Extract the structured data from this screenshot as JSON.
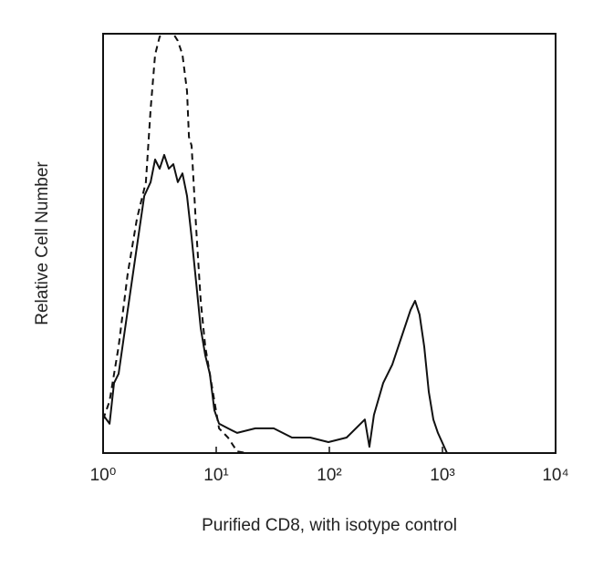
{
  "chart_data": {
    "type": "line",
    "x_label": "Purified CD8, with isotype control",
    "y_label": "Relative Cell Number",
    "xscale": "log",
    "xlim": [
      1,
      10000
    ],
    "xticks": [
      {
        "value": 1,
        "label": "10⁰"
      },
      {
        "value": 10,
        "label": "10¹"
      },
      {
        "value": 100,
        "label": "10²"
      },
      {
        "value": 1000,
        "label": "10³"
      },
      {
        "value": 10000,
        "label": "10⁴"
      }
    ],
    "ylim": [
      0,
      100
    ],
    "series": [
      {
        "color": "#111111",
        "style": "solid",
        "x": [
          1,
          1.14,
          1.25,
          1.37,
          1.65,
          1.99,
          2.31,
          2.63,
          2.88,
          3.16,
          3.47,
          3.81,
          4.18,
          4.58,
          5.03,
          5.52,
          6.06,
          6.65,
          7.29,
          8.0,
          8.78,
          9.64,
          10.6,
          12.7,
          15.3,
          22.2,
          32.2,
          46.7,
          67.7,
          98.2,
          142,
          206,
          226,
          248,
          299,
          360,
          434,
          522,
          573,
          628,
          690,
          757,
          830,
          912,
          1097
        ],
        "values": [
          9.1,
          7.0,
          16.7,
          18.9,
          34.1,
          49.3,
          61.3,
          64.6,
          70.0,
          67.8,
          71.1,
          67.8,
          68.9,
          64.6,
          66.7,
          61.3,
          51.5,
          40.7,
          29.8,
          23.3,
          18.9,
          10.2,
          7.0,
          5.9,
          4.8,
          5.9,
          5.9,
          3.7,
          3.7,
          2.6,
          3.7,
          8.0,
          1.5,
          9.1,
          16.7,
          21.1,
          27.6,
          34.1,
          36.3,
          33.0,
          25.4,
          14.6,
          8.0,
          4.8,
          0
        ]
      },
      {
        "color": "#111111",
        "style": "dashed",
        "x": [
          1,
          1.14,
          1.37,
          1.65,
          1.99,
          2.39,
          2.63,
          2.88,
          3.16,
          3.47,
          4.18,
          4.58,
          5.03,
          5.52,
          5.74,
          6.06,
          6.65,
          7.29,
          8.0,
          8.78,
          9.64,
          10.6,
          12.7,
          15.3,
          18.4
        ],
        "values": [
          8.0,
          12.4,
          25.4,
          42.8,
          55.9,
          64.6,
          82.0,
          95.0,
          99.3,
          100,
          100,
          98.3,
          95.0,
          86.3,
          75.4,
          73.3,
          53.7,
          36.3,
          25.4,
          18.9,
          12.4,
          5.9,
          3.7,
          0.4,
          0
        ]
      }
    ]
  }
}
